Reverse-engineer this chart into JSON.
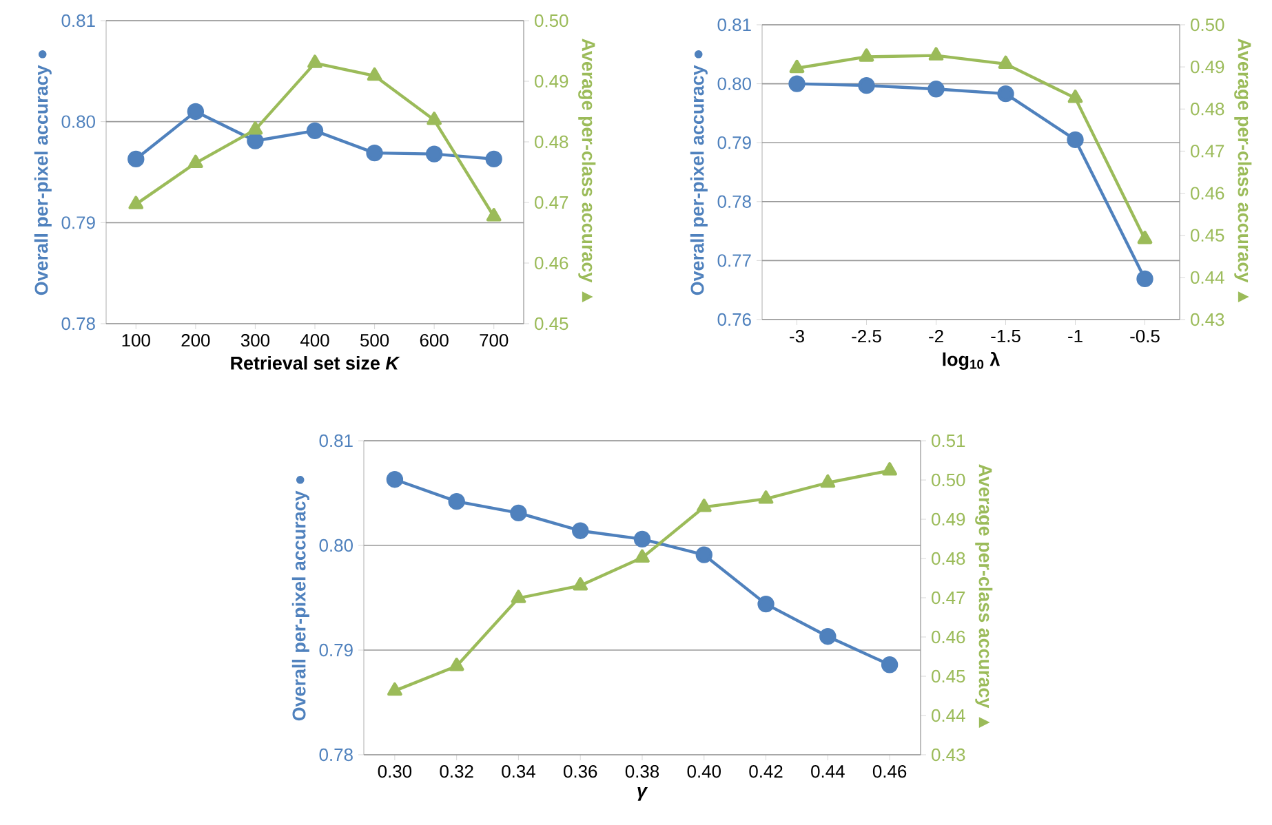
{
  "chart_data": [
    {
      "type": "line",
      "categories": [
        "100",
        "200",
        "300",
        "400",
        "500",
        "600",
        "700"
      ],
      "xlabel": "Retrieval set size *K*",
      "ylabel": "Overall per-pixel accuracy ●",
      "y2label": "Average per-class accuracy ▲",
      "ylim": [
        0.78,
        0.81
      ],
      "yticks": [
        {
          "value": 0.78,
          "label": "0.78"
        },
        {
          "value": 0.79,
          "label": "0.79"
        },
        {
          "value": 0.8,
          "label": "0.80"
        },
        {
          "value": 0.81,
          "label": "0.81"
        }
      ],
      "y2lim": [
        0.45,
        0.5
      ],
      "y2ticks": [
        {
          "value": 0.45,
          "label": "0.45"
        },
        {
          "value": 0.46,
          "label": "0.46"
        },
        {
          "value": 0.47,
          "label": "0.47"
        },
        {
          "value": 0.48,
          "label": "0.48"
        },
        {
          "value": 0.49,
          "label": "0.49"
        },
        {
          "value": 0.5,
          "label": "0.50"
        }
      ],
      "grid": "y",
      "line_style": "solid",
      "series": [
        {
          "color": "#4f81bd",
          "marker": "circle",
          "values": [
            0.7963,
            0.801,
            0.7981,
            0.7991,
            0.7969,
            0.7968,
            0.7963
          ]
        },
        {
          "color": "#9bbb59",
          "marker": "triangle",
          "axis": "y2",
          "values": [
            0.4697,
            0.4765,
            0.482,
            0.493,
            0.4909,
            0.4836,
            0.4677
          ]
        }
      ]
    },
    {
      "type": "line",
      "categories": [
        "-3",
        "-2.5",
        "-2",
        "-1.5",
        "-1",
        "-0.5"
      ],
      "xlabel": "log$_{10}$ λ",
      "ylabel": "Overall per-pixel accuracy ●",
      "y2label": "Average per-class accuracy ▲",
      "ylim": [
        0.76,
        0.81
      ],
      "yticks": [
        {
          "value": 0.76,
          "label": "0.76"
        },
        {
          "value": 0.77,
          "label": "0.77"
        },
        {
          "value": 0.78,
          "label": "0.78"
        },
        {
          "value": 0.79,
          "label": "0.79"
        },
        {
          "value": 0.8,
          "label": "0.80"
        },
        {
          "value": 0.81,
          "label": "0.81"
        }
      ],
      "y2lim": [
        0.43,
        0.5
      ],
      "y2ticks": [
        {
          "value": 0.43,
          "label": "0.43"
        },
        {
          "value": 0.44,
          "label": "0.44"
        },
        {
          "value": 0.45,
          "label": "0.45"
        },
        {
          "value": 0.46,
          "label": "0.46"
        },
        {
          "value": 0.47,
          "label": "0.47"
        },
        {
          "value": 0.48,
          "label": "0.48"
        },
        {
          "value": 0.49,
          "label": "0.49"
        },
        {
          "value": 0.5,
          "label": "0.50"
        }
      ],
      "grid": "y",
      "line_style": "solid",
      "series": [
        {
          "color": "#4f81bd",
          "marker": "circle",
          "values": [
            0.8,
            0.7997,
            0.7991,
            0.7983,
            0.7905,
            0.7669
          ]
        },
        {
          "color": "#9bbb59",
          "marker": "triangle",
          "axis": "y2",
          "values": [
            0.4897,
            0.4924,
            0.4927,
            0.4907,
            0.4826,
            0.4491
          ]
        }
      ]
    },
    {
      "type": "line",
      "categories": [
        "0.30",
        "0.32",
        "0.34",
        "0.36",
        "0.38",
        "0.40",
        "0.42",
        "0.44",
        "0.46"
      ],
      "xlabel": "*γ*",
      "ylabel": "Overall per-pixel accuracy ●",
      "y2label": "Average per-class accuracy ▲",
      "ylim": [
        0.78,
        0.81
      ],
      "yticks": [
        {
          "value": 0.78,
          "label": "0.78"
        },
        {
          "value": 0.79,
          "label": "0.79"
        },
        {
          "value": 0.8,
          "label": "0.80"
        },
        {
          "value": 0.81,
          "label": "0.81"
        }
      ],
      "y2lim": [
        0.43,
        0.51
      ],
      "y2ticks": [
        {
          "value": 0.43,
          "label": "0.43"
        },
        {
          "value": 0.44,
          "label": "0.44"
        },
        {
          "value": 0.45,
          "label": "0.45"
        },
        {
          "value": 0.46,
          "label": "0.46"
        },
        {
          "value": 0.47,
          "label": "0.47"
        },
        {
          "value": 0.48,
          "label": "0.48"
        },
        {
          "value": 0.49,
          "label": "0.49"
        },
        {
          "value": 0.5,
          "label": "0.50"
        },
        {
          "value": 0.51,
          "label": "0.51"
        }
      ],
      "grid": "y",
      "line_style": "solid",
      "series": [
        {
          "color": "#4f81bd",
          "marker": "circle",
          "values": [
            0.8063,
            0.8042,
            0.8031,
            0.8014,
            0.8006,
            0.7991,
            0.7944,
            0.7913,
            0.7886
          ]
        },
        {
          "color": "#9bbb59",
          "marker": "triangle",
          "axis": "y2",
          "values": [
            0.4463,
            0.4526,
            0.4699,
            0.4731,
            0.4802,
            0.4931,
            0.4952,
            0.4993,
            0.5024
          ]
        }
      ]
    }
  ]
}
